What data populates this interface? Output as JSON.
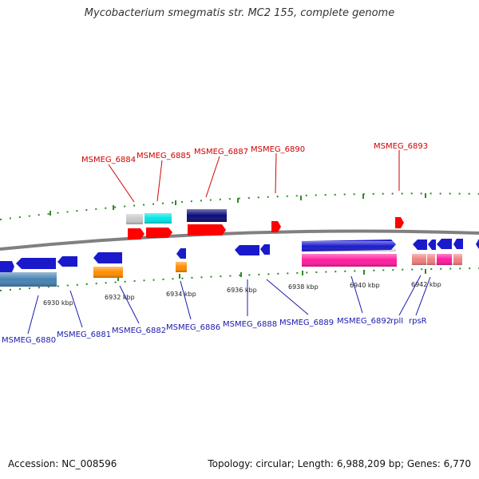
{
  "title": "Mycobacterium smegmatis str. MC2 155, complete genome",
  "footer": {
    "accession": "Accession: NC_008596",
    "meta": "Topology: circular; Length: 6,988,209 bp; Genes: 6,770"
  },
  "colors": {
    "backbone": "#808080",
    "tick": "#2e8b22",
    "label_top": "#d10000",
    "label_bottom": "#1a1ab0"
  },
  "ticks": [
    "6930 kbp",
    "6932 kbp",
    "6934 kbp",
    "6936 kbp",
    "6938 kbp",
    "6940 kbp",
    "6942 kbp"
  ],
  "genes_top": [
    {
      "label": "MSMEG_6884",
      "color": "#e8e8e8"
    },
    {
      "label": "MSMEG_6885",
      "color": "#00e5e5"
    },
    {
      "label": "MSMEG_6887",
      "color": "#0b0b7a"
    },
    {
      "label": "MSMEG_6890",
      "color": "#ff0000"
    },
    {
      "label": "MSMEG_6893",
      "color": "#ff0000"
    }
  ],
  "genes_bottom": [
    {
      "label": "MSMEG_6880",
      "color": "#1a1acc"
    },
    {
      "label": "MSMEG_6881",
      "color": "#1a1acc"
    },
    {
      "label": "MSMEG_6882",
      "color": "#ff8c00"
    },
    {
      "label": "MSMEG_6886",
      "color": "#1a1acc"
    },
    {
      "label": "MSMEG_6888",
      "color": "#1a1acc"
    },
    {
      "label": "MSMEG_6889",
      "color": "#1a1acc"
    },
    {
      "label": "MSMEG_6892",
      "color": "#ff1a9e"
    },
    {
      "label": "rplI",
      "color": "#f08080"
    },
    {
      "label": "rpsR",
      "color": "#1a1acc"
    }
  ]
}
